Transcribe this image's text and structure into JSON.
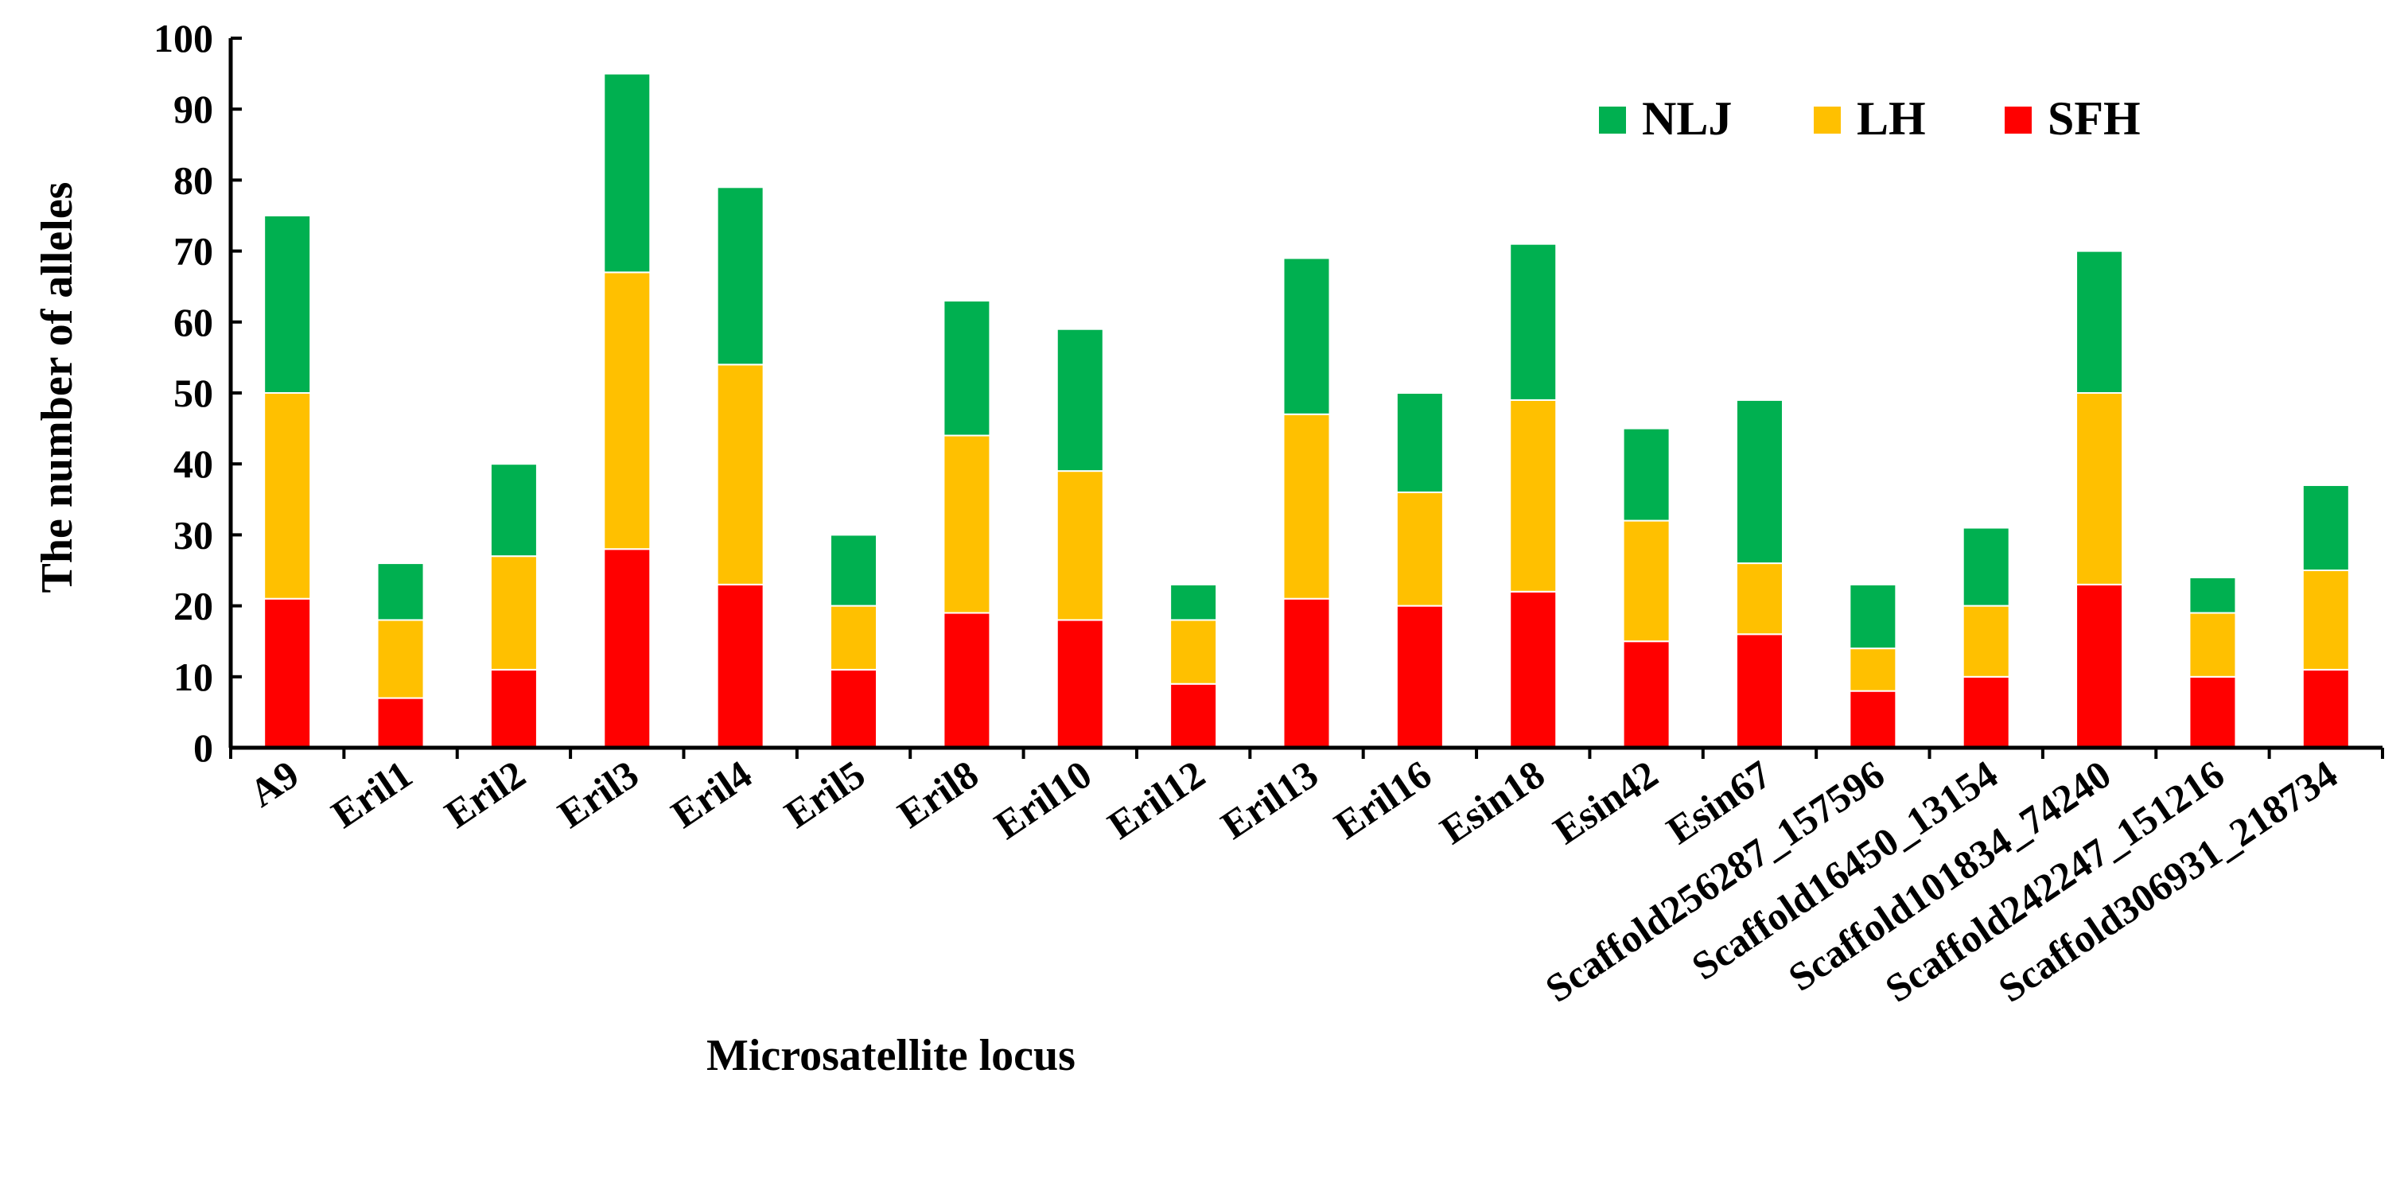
{
  "chart_data": {
    "type": "bar",
    "stacked": true,
    "title": "",
    "xlabel": "Microsatellite locus",
    "ylabel": "The number of alleles",
    "ylim": [
      0,
      100
    ],
    "yticks": [
      0,
      10,
      20,
      30,
      40,
      50,
      60,
      70,
      80,
      90,
      100
    ],
    "grid": false,
    "legend_position": "top-right",
    "categories": [
      "A9",
      "Eril1",
      "Eril2",
      "Eril3",
      "Eril4",
      "Eril5",
      "Eril8",
      "Eril10",
      "Eril12",
      "Eril13",
      "Eril16",
      "Esin18",
      "Esin42",
      "Esin67",
      "Scaffold256287_157596",
      "Scaffold16450_13154",
      "Scaffold101834_74240",
      "Scaffold242247_151216",
      "Scaffold306931_218734"
    ],
    "series": [
      {
        "name": "SFH",
        "color": "#ff0000",
        "values": [
          21,
          7,
          11,
          28,
          23,
          11,
          19,
          18,
          9,
          21,
          20,
          22,
          15,
          16,
          8,
          10,
          23,
          10,
          11
        ]
      },
      {
        "name": "LH",
        "color": "#ffc000",
        "values": [
          29,
          11,
          16,
          39,
          31,
          9,
          25,
          21,
          9,
          26,
          16,
          27,
          17,
          10,
          6,
          10,
          27,
          9,
          14
        ]
      },
      {
        "name": "NLJ",
        "color": "#00b050",
        "values": [
          25,
          8,
          13,
          28,
          25,
          10,
          19,
          20,
          5,
          22,
          14,
          22,
          13,
          23,
          9,
          11,
          20,
          5,
          12
        ]
      }
    ],
    "legend_order": [
      "NLJ",
      "LH",
      "SFH"
    ]
  }
}
